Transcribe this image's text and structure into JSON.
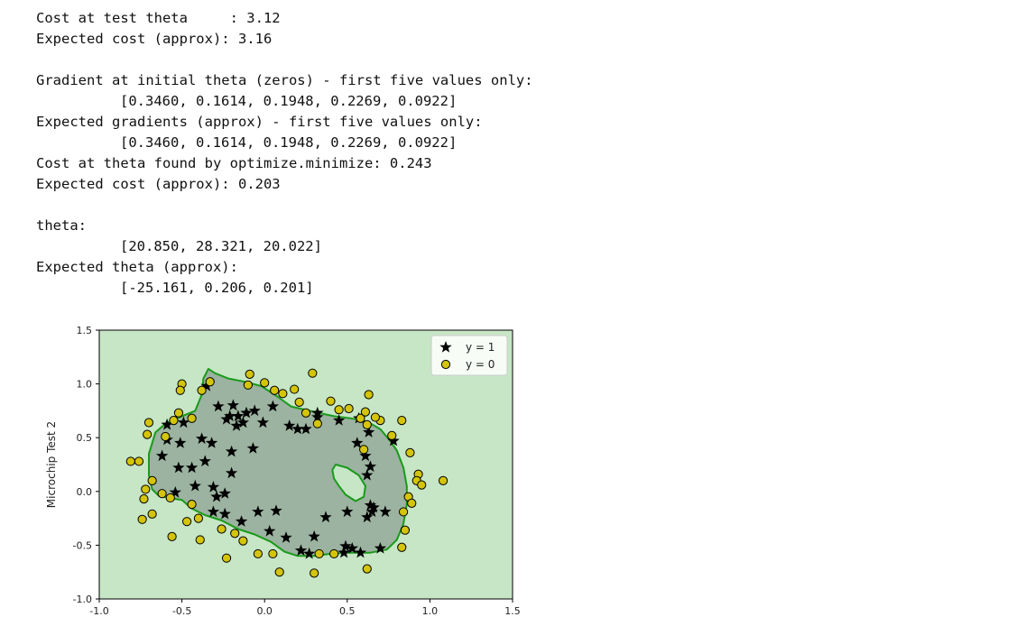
{
  "output": {
    "lines": [
      {
        "text": "Cost at test theta     : 3.12",
        "indent": false
      },
      {
        "text": "Expected cost (approx): 3.16",
        "indent": false
      },
      {
        "text": "",
        "indent": false
      },
      {
        "text": "Gradient at initial theta (zeros) - first five values only:",
        "indent": false
      },
      {
        "text": "[0.3460, 0.1614, 0.1948, 0.2269, 0.0922]",
        "indent": true
      },
      {
        "text": "Expected gradients (approx) - first five values only:",
        "indent": false
      },
      {
        "text": "[0.3460, 0.1614, 0.1948, 0.2269, 0.0922]",
        "indent": true
      },
      {
        "text": "Cost at theta found by optimize.minimize: 0.243",
        "indent": false
      },
      {
        "text": "Expected cost (approx): 0.203",
        "indent": false
      },
      {
        "text": "",
        "indent": false
      },
      {
        "text": "theta:",
        "indent": false
      },
      {
        "text": "[20.850, 28.321, 20.022]",
        "indent": true
      },
      {
        "text": "Expected theta (approx):",
        "indent": false
      },
      {
        "text": "[-25.161, 0.206, 0.201]",
        "indent": true
      }
    ]
  },
  "chart_data": {
    "type": "scatter",
    "xlabel": "",
    "ylabel": "Microchip Test 2",
    "xlim": [
      -1.0,
      1.5
    ],
    "ylim": [
      -1.0,
      1.5
    ],
    "xticks": [
      "-1.0",
      "-0.5",
      "0.0",
      "0.5",
      "1.0",
      "1.5"
    ],
    "yticks": [
      "-1.0",
      "-0.5",
      "0.0",
      "0.5",
      "1.0",
      "1.5"
    ],
    "legend": {
      "placement": "top-right",
      "entries": [
        "y = 1",
        "y = 0"
      ]
    },
    "colors": {
      "background": "#c6e6c6",
      "inside_region": "#9bb3a0",
      "boundary": "#1a9a1a",
      "positive_marker": "#000000",
      "negative_marker": "#d4c40a"
    },
    "boundary": [
      [
        -0.34,
        1.14
      ],
      [
        -0.3,
        1.1
      ],
      [
        -0.22,
        1.05
      ],
      [
        -0.12,
        1.02
      ],
      [
        -0.02,
        0.98
      ],
      [
        0.08,
        0.88
      ],
      [
        0.16,
        0.79
      ],
      [
        0.3,
        0.74
      ],
      [
        0.42,
        0.7
      ],
      [
        0.52,
        0.68
      ],
      [
        0.62,
        0.65
      ],
      [
        0.7,
        0.58
      ],
      [
        0.76,
        0.47
      ],
      [
        0.8,
        0.38
      ],
      [
        0.84,
        0.22
      ],
      [
        0.86,
        0.05
      ],
      [
        0.86,
        -0.12
      ],
      [
        0.84,
        -0.3
      ],
      [
        0.8,
        -0.45
      ],
      [
        0.74,
        -0.54
      ],
      [
        0.64,
        -0.57
      ],
      [
        0.52,
        -0.57
      ],
      [
        0.4,
        -0.58
      ],
      [
        0.3,
        -0.6
      ],
      [
        0.2,
        -0.6
      ],
      [
        0.12,
        -0.56
      ],
      [
        0.04,
        -0.47
      ],
      [
        -0.06,
        -0.4
      ],
      [
        -0.16,
        -0.35
      ],
      [
        -0.26,
        -0.27
      ],
      [
        -0.36,
        -0.22
      ],
      [
        -0.44,
        -0.16
      ],
      [
        -0.5,
        -0.08
      ],
      [
        -0.58,
        -0.06
      ],
      [
        -0.64,
        -0.04
      ],
      [
        -0.68,
        0.02
      ],
      [
        -0.7,
        0.15
      ],
      [
        -0.7,
        0.35
      ],
      [
        -0.66,
        0.55
      ],
      [
        -0.6,
        0.63
      ],
      [
        -0.5,
        0.7
      ],
      [
        -0.42,
        0.75
      ],
      [
        -0.38,
        0.9
      ],
      [
        -0.37,
        1.05
      ]
    ],
    "hole": [
      [
        0.43,
        0.25
      ],
      [
        0.5,
        0.22
      ],
      [
        0.57,
        0.15
      ],
      [
        0.61,
        0.05
      ],
      [
        0.6,
        -0.05
      ],
      [
        0.55,
        -0.09
      ],
      [
        0.49,
        -0.03
      ],
      [
        0.45,
        0.05
      ],
      [
        0.42,
        0.12
      ],
      [
        0.41,
        0.2
      ]
    ],
    "series": [
      {
        "name": "y = 1",
        "marker": "star",
        "points": [
          [
            -0.35,
            0.98
          ],
          [
            -0.28,
            0.79
          ],
          [
            -0.19,
            0.8
          ],
          [
            -0.16,
            0.7
          ],
          [
            -0.23,
            0.67
          ],
          [
            -0.11,
            0.73
          ],
          [
            -0.21,
            0.7
          ],
          [
            -0.17,
            0.61
          ],
          [
            -0.13,
            0.64
          ],
          [
            -0.06,
            0.75
          ],
          [
            0.05,
            0.79
          ],
          [
            -0.01,
            0.64
          ],
          [
            0.15,
            0.61
          ],
          [
            0.2,
            0.58
          ],
          [
            0.25,
            0.58
          ],
          [
            0.32,
            0.69
          ],
          [
            0.45,
            0.66
          ],
          [
            0.57,
            0.68
          ],
          [
            0.63,
            0.55
          ],
          [
            0.56,
            0.45
          ],
          [
            -0.59,
            0.62
          ],
          [
            -0.49,
            0.64
          ],
          [
            -0.59,
            0.48
          ],
          [
            -0.51,
            0.45
          ],
          [
            -0.38,
            0.49
          ],
          [
            -0.32,
            0.45
          ],
          [
            -0.2,
            0.37
          ],
          [
            -0.62,
            0.33
          ],
          [
            -0.52,
            0.22
          ],
          [
            -0.44,
            0.22
          ],
          [
            -0.36,
            0.28
          ],
          [
            -0.2,
            0.17
          ],
          [
            -0.54,
            -0.01
          ],
          [
            -0.42,
            0.05
          ],
          [
            -0.31,
            0.04
          ],
          [
            -0.29,
            -0.05
          ],
          [
            -0.24,
            -0.02
          ],
          [
            -0.31,
            -0.19
          ],
          [
            -0.24,
            -0.21
          ],
          [
            -0.14,
            -0.28
          ],
          [
            -0.04,
            -0.19
          ],
          [
            0.07,
            -0.18
          ],
          [
            0.03,
            -0.37
          ],
          [
            0.13,
            -0.43
          ],
          [
            0.22,
            -0.55
          ],
          [
            0.27,
            -0.58
          ],
          [
            0.3,
            -0.42
          ],
          [
            0.37,
            -0.24
          ],
          [
            0.48,
            -0.57
          ],
          [
            0.53,
            -0.53
          ],
          [
            0.58,
            -0.57
          ],
          [
            0.49,
            -0.51
          ],
          [
            0.7,
            -0.53
          ],
          [
            0.62,
            -0.24
          ],
          [
            0.64,
            -0.13
          ],
          [
            0.73,
            -0.19
          ],
          [
            0.66,
            -0.15
          ],
          [
            0.65,
            -0.19
          ],
          [
            0.5,
            -0.19
          ],
          [
            0.62,
            0.15
          ],
          [
            0.61,
            0.33
          ],
          [
            0.64,
            0.23
          ],
          [
            0.78,
            0.47
          ],
          [
            -0.07,
            0.4
          ],
          [
            0.32,
            0.73
          ]
        ]
      },
      {
        "name": "y = 0",
        "marker": "circle",
        "points": [
          [
            -0.5,
            1.0
          ],
          [
            -0.51,
            0.94
          ],
          [
            -0.38,
            0.94
          ],
          [
            -0.33,
            1.02
          ],
          [
            -0.09,
            1.09
          ],
          [
            -0.1,
            0.99
          ],
          [
            0.0,
            1.01
          ],
          [
            0.06,
            0.94
          ],
          [
            0.18,
            0.95
          ],
          [
            0.29,
            1.1
          ],
          [
            0.21,
            0.83
          ],
          [
            0.4,
            0.84
          ],
          [
            0.45,
            0.76
          ],
          [
            0.51,
            0.77
          ],
          [
            0.58,
            0.68
          ],
          [
            0.62,
            0.62
          ],
          [
            0.7,
            0.66
          ],
          [
            0.63,
            0.9
          ],
          [
            0.61,
            0.74
          ],
          [
            0.67,
            0.69
          ],
          [
            0.83,
            0.66
          ],
          [
            0.77,
            0.52
          ],
          [
            0.88,
            0.36
          ],
          [
            0.93,
            0.16
          ],
          [
            0.92,
            0.1
          ],
          [
            0.95,
            0.06
          ],
          [
            1.08,
            0.1
          ],
          [
            0.87,
            -0.05
          ],
          [
            0.89,
            -0.11
          ],
          [
            0.84,
            -0.19
          ],
          [
            0.85,
            -0.36
          ],
          [
            0.83,
            -0.52
          ],
          [
            0.62,
            -0.72
          ],
          [
            0.42,
            -0.58
          ],
          [
            0.33,
            -0.58
          ],
          [
            0.3,
            -0.76
          ],
          [
            0.09,
            -0.75
          ],
          [
            0.05,
            -0.58
          ],
          [
            -0.04,
            -0.58
          ],
          [
            -0.23,
            -0.62
          ],
          [
            -0.18,
            -0.39
          ],
          [
            -0.26,
            -0.35
          ],
          [
            -0.13,
            -0.46
          ],
          [
            -0.39,
            -0.45
          ],
          [
            -0.47,
            -0.28
          ],
          [
            -0.4,
            -0.25
          ],
          [
            -0.56,
            -0.42
          ],
          [
            -0.74,
            -0.26
          ],
          [
            -0.68,
            -0.21
          ],
          [
            -0.73,
            -0.07
          ],
          [
            -0.72,
            0.02
          ],
          [
            -0.62,
            -0.02
          ],
          [
            -0.68,
            0.1
          ],
          [
            -0.57,
            -0.06
          ],
          [
            -0.44,
            -0.12
          ],
          [
            -0.81,
            0.28
          ],
          [
            -0.76,
            0.28
          ],
          [
            -0.71,
            0.53
          ],
          [
            -0.7,
            0.64
          ],
          [
            -0.6,
            0.51
          ],
          [
            -0.55,
            0.66
          ],
          [
            -0.44,
            0.68
          ],
          [
            -0.52,
            0.73
          ],
          [
            0.32,
            0.63
          ],
          [
            0.11,
            0.91
          ],
          [
            0.6,
            0.39
          ],
          [
            0.25,
            0.73
          ]
        ]
      }
    ]
  }
}
